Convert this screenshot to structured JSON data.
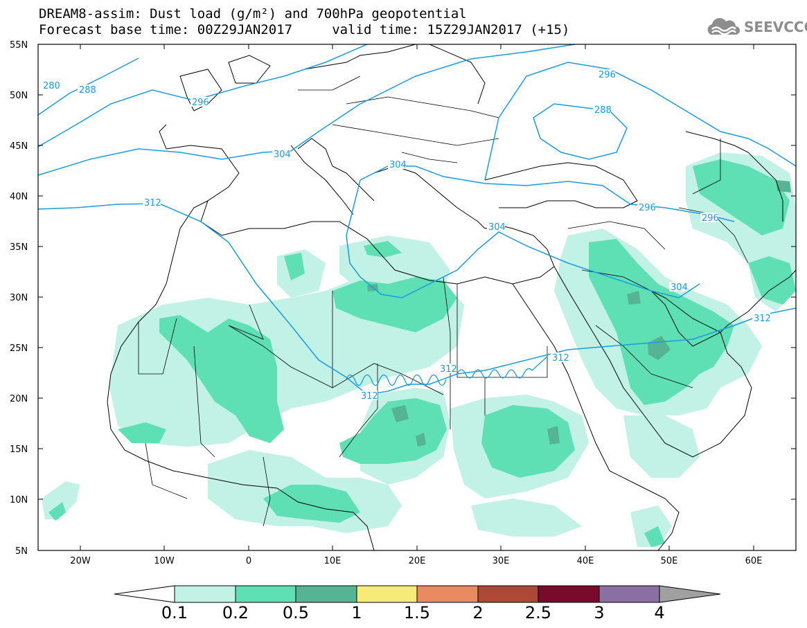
{
  "header": {
    "title_line1": "DREAM8-assim: Dust load (g/m²) and 700hPa geopotential",
    "title_line2": "Forecast base time: 00Z29JAN2017     valid time: 15Z29JAN2017 (+15)"
  },
  "logo": {
    "text": "SEEVCCC",
    "icon": "cloud-logo-icon"
  },
  "map": {
    "lat_labels": [
      "55N",
      "50N",
      "45N",
      "40N",
      "35N",
      "30N",
      "25N",
      "20N",
      "15N",
      "10N",
      "5N"
    ],
    "lon_labels": [
      "20W",
      "10W",
      "0",
      "10E",
      "20E",
      "30E",
      "40E",
      "50E",
      "60E"
    ],
    "contour_labels": [
      {
        "text": "280"
      },
      {
        "text": "288"
      },
      {
        "text": "296"
      },
      {
        "text": "304"
      },
      {
        "text": "304"
      },
      {
        "text": "312"
      },
      {
        "text": "304"
      },
      {
        "text": "296"
      },
      {
        "text": "288"
      },
      {
        "text": "296"
      },
      {
        "text": "296"
      },
      {
        "text": "304"
      },
      {
        "text": "312"
      },
      {
        "text": "312"
      },
      {
        "text": "312"
      },
      {
        "text": "312"
      }
    ],
    "contour_color": "#1a9be0"
  },
  "colorbar": {
    "labels": [
      "0.1",
      "0.2",
      "0.5",
      "1",
      "1.5",
      "2",
      "2.5",
      "3",
      "4"
    ],
    "colors": [
      "#c2f1e6",
      "#5ee0b4",
      "#54b493",
      "#f6ea78",
      "#e98a60",
      "#ad4836",
      "#7a0a2b",
      "#8a6fa2"
    ],
    "under_color": "#ffffff",
    "over_color": "#a0a0a0"
  }
}
